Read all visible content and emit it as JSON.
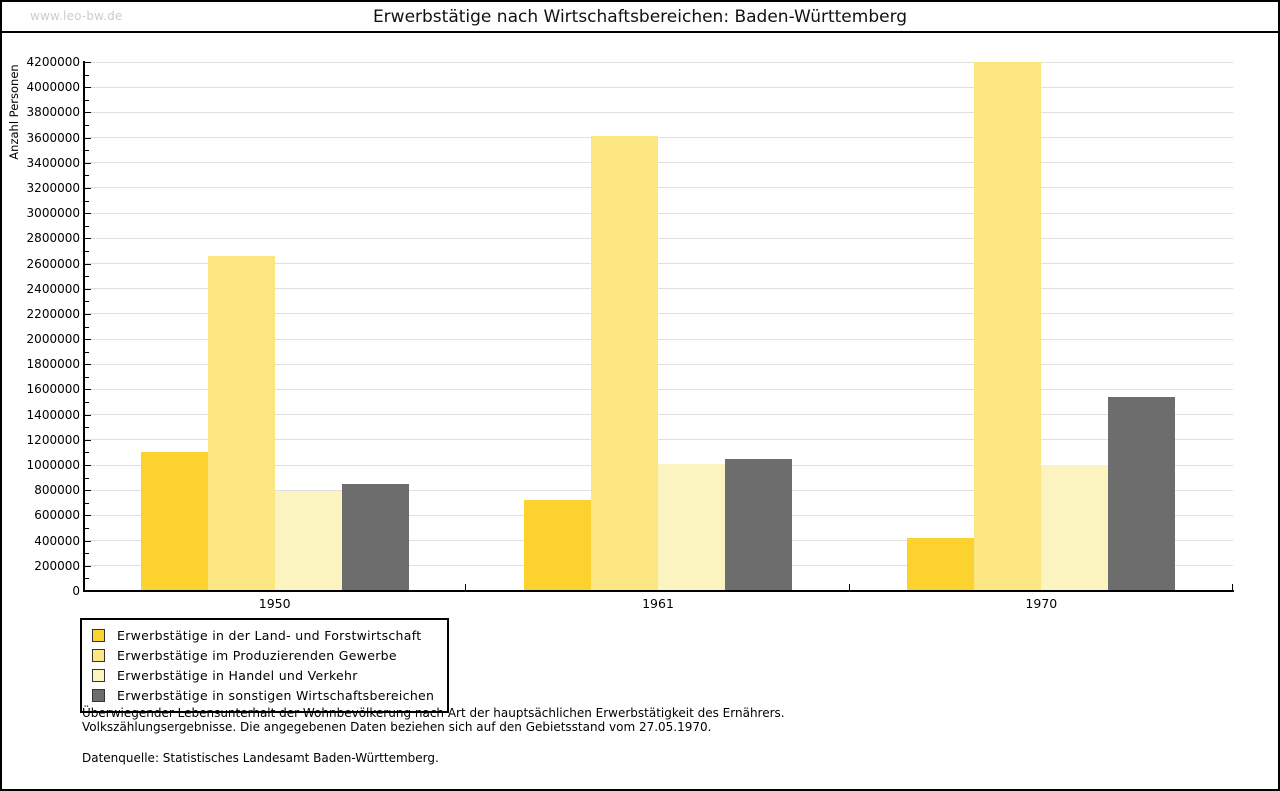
{
  "header": {
    "watermark": "www.leo-bw.de",
    "title": "Erwerbstätige nach Wirtschaftsbereichen: Baden-Württemberg"
  },
  "chart_data": {
    "type": "bar",
    "title": "Erwerbstätige nach Wirtschaftsbereichen: Baden-Württemberg",
    "xlabel": "",
    "ylabel": "Anzahl Personen",
    "categories": [
      "1950",
      "1961",
      "1970"
    ],
    "series": [
      {
        "name": "Erwerbstätige in der Land- und Forstwirtschaft",
        "color": "#fcd22f",
        "values": [
          1100000,
          720000,
          420000
        ]
      },
      {
        "name": "Erwerbstätige im Produzierenden Gewerbe",
        "color": "#fbe682",
        "values": [
          2660000,
          3610000,
          4200000
        ]
      },
      {
        "name": "Erwerbstätige in Handel und Verkehr",
        "color": "#fbf3c0",
        "values": [
          790000,
          1010000,
          1000000
        ]
      },
      {
        "name": "Erwerbstätige in sonstigen Wirtschaftsbereichen",
        "color": "#6d6d6d",
        "values": [
          850000,
          1050000,
          1540000
        ]
      }
    ],
    "ylim": [
      0,
      4200000
    ],
    "ytick_step": 200000,
    "ytick_minor_step": 100000,
    "grid": true,
    "legend_position": "bottom-left"
  },
  "footer": {
    "note_line1": "Überwiegender Lebensunterhalt der Wohnbevölkerung nach Art der hauptsächlichen Erwerbstätigkeit des Ernährers.",
    "note_line2": "Volkszählungsergebnisse. Die angegebenen Daten beziehen sich auf den Gebietsstand vom 27.05.1970.",
    "source": "Datenquelle: Statistisches Landesamt Baden-Württemberg."
  },
  "colors": {
    "axis": "#000000",
    "grid": "#e0e0e0",
    "watermark": "#cccccc",
    "background": "#ffffff"
  }
}
